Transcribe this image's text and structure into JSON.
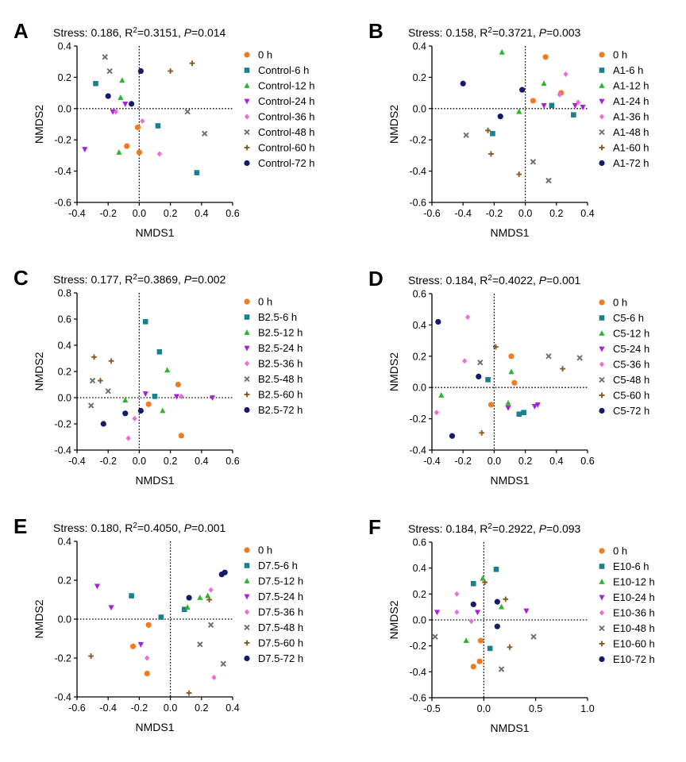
{
  "series_styles": [
    {
      "color": "#f47a20",
      "marker": "circle"
    },
    {
      "color": "#1a7f8e",
      "marker": "square"
    },
    {
      "color": "#2db52d",
      "marker": "triangle-up"
    },
    {
      "color": "#a523d6",
      "marker": "triangle-down"
    },
    {
      "color": "#f06ad8",
      "marker": "diamond"
    },
    {
      "color": "#6d6d6d",
      "marker": "x"
    },
    {
      "color": "#8a5a24",
      "marker": "plus"
    },
    {
      "color": "#151a6b",
      "marker": "circle"
    }
  ],
  "chart_data": [
    {
      "panel": "A",
      "type": "scatter",
      "stress": "0.186",
      "r2": "0.3151",
      "p": "0.014",
      "xlabel": "NMDS1",
      "ylabel": "NMDS2",
      "xlim": [
        -0.4,
        0.6
      ],
      "ylim": [
        -0.6,
        0.4
      ],
      "xticks": [
        -0.4,
        -0.2,
        0.0,
        0.2,
        0.4,
        0.6
      ],
      "yticks": [
        -0.6,
        -0.4,
        -0.2,
        0.0,
        0.2,
        0.4
      ],
      "series": [
        {
          "name": "0 h",
          "points": [
            [
              -0.01,
              -0.12
            ],
            [
              -0.08,
              -0.24
            ],
            [
              0.0,
              -0.28
            ]
          ]
        },
        {
          "name": "Control-6 h",
          "points": [
            [
              -0.28,
              0.16
            ],
            [
              0.12,
              -0.11
            ],
            [
              0.37,
              -0.41
            ]
          ]
        },
        {
          "name": "Control-12 h",
          "points": [
            [
              -0.11,
              0.18
            ],
            [
              -0.12,
              0.07
            ],
            [
              -0.13,
              -0.28
            ]
          ]
        },
        {
          "name": "Control-24 h",
          "points": [
            [
              -0.35,
              -0.26
            ],
            [
              -0.09,
              0.03
            ],
            [
              -0.17,
              -0.02
            ]
          ]
        },
        {
          "name": "Control-36 h",
          "points": [
            [
              -0.15,
              -0.02
            ],
            [
              0.02,
              -0.08
            ],
            [
              0.13,
              -0.29
            ]
          ]
        },
        {
          "name": "Control-48 h",
          "points": [
            [
              -0.22,
              0.33
            ],
            [
              -0.19,
              0.24
            ],
            [
              0.31,
              -0.02
            ],
            [
              0.42,
              -0.16
            ]
          ]
        },
        {
          "name": "Control-60 h",
          "points": [
            [
              0.2,
              0.24
            ],
            [
              0.34,
              0.29
            ]
          ]
        },
        {
          "name": "Control-72 h",
          "points": [
            [
              -0.2,
              0.08
            ],
            [
              -0.05,
              0.03
            ],
            [
              0.01,
              0.24
            ]
          ]
        }
      ]
    },
    {
      "panel": "B",
      "type": "scatter",
      "stress": "0.158",
      "r2": "0.3721",
      "p": "0.003",
      "xlabel": "NMDS1",
      "ylabel": "NMDS2",
      "xlim": [
        -0.6,
        0.4
      ],
      "ylim": [
        -0.6,
        0.4
      ],
      "xticks": [
        -0.6,
        -0.4,
        -0.2,
        0.0,
        0.2,
        0.4
      ],
      "yticks": [
        -0.6,
        -0.4,
        -0.2,
        0.0,
        0.2,
        0.4
      ],
      "series": [
        {
          "name": "0 h",
          "points": [
            [
              0.13,
              0.33
            ],
            [
              0.23,
              0.1
            ],
            [
              0.05,
              0.05
            ]
          ]
        },
        {
          "name": "A1-6 h",
          "points": [
            [
              0.17,
              0.02
            ],
            [
              0.31,
              -0.04
            ],
            [
              -0.21,
              -0.16
            ]
          ]
        },
        {
          "name": "A1-12 h",
          "points": [
            [
              -0.15,
              0.36
            ],
            [
              0.12,
              0.16
            ],
            [
              -0.04,
              -0.02
            ]
          ]
        },
        {
          "name": "A1-24 h",
          "points": [
            [
              0.12,
              0.02
            ],
            [
              0.32,
              0.02
            ],
            [
              0.37,
              0.01
            ]
          ]
        },
        {
          "name": "A1-36 h",
          "points": [
            [
              0.26,
              0.22
            ],
            [
              0.22,
              0.09
            ],
            [
              0.34,
              0.04
            ]
          ]
        },
        {
          "name": "A1-48 h",
          "points": [
            [
              -0.38,
              -0.17
            ],
            [
              0.05,
              -0.34
            ],
            [
              0.15,
              -0.46
            ]
          ]
        },
        {
          "name": "A1-60 h",
          "points": [
            [
              -0.24,
              -0.14
            ],
            [
              -0.22,
              -0.29
            ],
            [
              -0.04,
              -0.42
            ]
          ]
        },
        {
          "name": "A1-72 h",
          "points": [
            [
              -0.4,
              0.16
            ],
            [
              -0.16,
              -0.05
            ],
            [
              -0.02,
              0.12
            ]
          ]
        }
      ]
    },
    {
      "panel": "C",
      "type": "scatter",
      "stress": "0.177",
      "r2": "0.3869",
      "p": "0.002",
      "xlabel": "NMDS1",
      "ylabel": "NMDS2",
      "xlim": [
        -0.4,
        0.6
      ],
      "ylim": [
        -0.4,
        0.8
      ],
      "xticks": [
        -0.4,
        -0.2,
        0.0,
        0.2,
        0.4,
        0.6
      ],
      "yticks": [
        -0.4,
        -0.2,
        0.0,
        0.2,
        0.4,
        0.6,
        0.8
      ],
      "series": [
        {
          "name": "0 h",
          "points": [
            [
              0.25,
              0.1
            ],
            [
              0.06,
              -0.05
            ],
            [
              0.27,
              -0.29
            ]
          ]
        },
        {
          "name": "B2.5-6 h",
          "points": [
            [
              0.04,
              0.58
            ],
            [
              0.13,
              0.35
            ],
            [
              0.1,
              0.01
            ]
          ]
        },
        {
          "name": "B2.5-12 h",
          "points": [
            [
              -0.09,
              -0.02
            ],
            [
              0.18,
              0.21
            ],
            [
              0.15,
              -0.1
            ]
          ]
        },
        {
          "name": "B2.5-24 h",
          "points": [
            [
              0.04,
              0.03
            ],
            [
              0.24,
              0.01
            ],
            [
              0.47,
              0.0
            ]
          ]
        },
        {
          "name": "B2.5-36 h",
          "points": [
            [
              0.27,
              0.01
            ],
            [
              -0.07,
              -0.31
            ],
            [
              -0.03,
              -0.16
            ]
          ]
        },
        {
          "name": "B2.5-48 h",
          "points": [
            [
              -0.3,
              0.13
            ],
            [
              -0.2,
              0.05
            ],
            [
              -0.31,
              -0.06
            ]
          ]
        },
        {
          "name": "B2.5-60 h",
          "points": [
            [
              -0.29,
              0.31
            ],
            [
              -0.18,
              0.28
            ],
            [
              -0.25,
              0.13
            ]
          ]
        },
        {
          "name": "B2.5-72 h",
          "points": [
            [
              -0.23,
              -0.2
            ],
            [
              -0.09,
              -0.12
            ],
            [
              0.01,
              -0.1
            ]
          ]
        }
      ]
    },
    {
      "panel": "D",
      "type": "scatter",
      "stress": "0.184",
      "r2": "0.4022",
      "p": "0.001",
      "xlabel": "NMDS1",
      "ylabel": "NMDS2",
      "xlim": [
        -0.4,
        0.6
      ],
      "ylim": [
        -0.4,
        0.6
      ],
      "xticks": [
        -0.4,
        -0.2,
        0.0,
        0.2,
        0.4,
        0.6
      ],
      "yticks": [
        -0.4,
        -0.2,
        0.0,
        0.2,
        0.4,
        0.6
      ],
      "series": [
        {
          "name": "0 h",
          "points": [
            [
              0.11,
              0.2
            ],
            [
              0.13,
              0.03
            ],
            [
              -0.02,
              -0.11
            ]
          ]
        },
        {
          "name": "C5-6 h",
          "points": [
            [
              -0.04,
              0.05
            ],
            [
              0.16,
              -0.17
            ],
            [
              0.19,
              -0.16
            ]
          ]
        },
        {
          "name": "C5-12 h",
          "points": [
            [
              -0.34,
              -0.05
            ],
            [
              0.11,
              0.1
            ],
            [
              0.09,
              -0.1
            ]
          ]
        },
        {
          "name": "C5-24 h",
          "points": [
            [
              0.09,
              -0.13
            ],
            [
              0.26,
              -0.12
            ],
            [
              0.28,
              -0.11
            ]
          ]
        },
        {
          "name": "C5-36 h",
          "points": [
            [
              -0.17,
              0.45
            ],
            [
              -0.19,
              0.17
            ],
            [
              -0.37,
              -0.16
            ]
          ]
        },
        {
          "name": "C5-48 h",
          "points": [
            [
              -0.09,
              0.16
            ],
            [
              0.35,
              0.2
            ],
            [
              0.55,
              0.19
            ]
          ]
        },
        {
          "name": "C5-60 h",
          "points": [
            [
              0.01,
              0.26
            ],
            [
              0.44,
              0.12
            ],
            [
              -0.08,
              -0.29
            ]
          ]
        },
        {
          "name": "C5-72 h",
          "points": [
            [
              -0.36,
              0.42
            ],
            [
              -0.1,
              0.07
            ],
            [
              -0.27,
              -0.31
            ]
          ]
        }
      ]
    },
    {
      "panel": "E",
      "type": "scatter",
      "stress": "0.180",
      "r2": "0.4050",
      "p": "0.001",
      "xlabel": "NMDS1",
      "ylabel": "NMDS2",
      "xlim": [
        -0.6,
        0.4
      ],
      "ylim": [
        -0.4,
        0.4
      ],
      "xticks": [
        -0.6,
        -0.4,
        -0.2,
        0.0,
        0.2,
        0.4
      ],
      "yticks": [
        -0.4,
        -0.2,
        0.0,
        0.2,
        0.4
      ],
      "series": [
        {
          "name": "0 h",
          "points": [
            [
              -0.14,
              -0.03
            ],
            [
              -0.24,
              -0.14
            ],
            [
              -0.15,
              -0.28
            ]
          ]
        },
        {
          "name": "D7.5-6 h",
          "points": [
            [
              -0.25,
              0.12
            ],
            [
              -0.06,
              0.01
            ],
            [
              0.09,
              0.05
            ]
          ]
        },
        {
          "name": "D7.5-12 h",
          "points": [
            [
              0.11,
              0.06
            ],
            [
              0.19,
              0.11
            ],
            [
              0.24,
              0.12
            ]
          ]
        },
        {
          "name": "D7.5-24 h",
          "points": [
            [
              -0.47,
              0.17
            ],
            [
              -0.38,
              0.06
            ],
            [
              -0.19,
              -0.13
            ]
          ]
        },
        {
          "name": "D7.5-36 h",
          "points": [
            [
              0.26,
              0.15
            ],
            [
              -0.15,
              -0.2
            ],
            [
              0.28,
              -0.3
            ]
          ]
        },
        {
          "name": "D7.5-48 h",
          "points": [
            [
              0.26,
              -0.03
            ],
            [
              0.19,
              -0.13
            ],
            [
              0.34,
              -0.23
            ]
          ]
        },
        {
          "name": "D7.5-60 h",
          "points": [
            [
              0.25,
              0.1
            ],
            [
              -0.51,
              -0.19
            ],
            [
              0.12,
              -0.38
            ]
          ]
        },
        {
          "name": "D7.5-72 h",
          "points": [
            [
              0.33,
              0.23
            ],
            [
              0.35,
              0.24
            ],
            [
              0.12,
              0.11
            ]
          ]
        }
      ]
    },
    {
      "panel": "F",
      "type": "scatter",
      "stress": "0.184",
      "r2": "0.2922",
      "p": "0.093",
      "xlabel": "NMDS1",
      "ylabel": "NMDS2",
      "xlim": [
        -0.5,
        1.0
      ],
      "ylim": [
        -0.6,
        0.6
      ],
      "xticks": [
        -0.5,
        0.0,
        0.5,
        1.0
      ],
      "yticks": [
        -0.6,
        -0.4,
        -0.2,
        0.0,
        0.2,
        0.4,
        0.6
      ],
      "series": [
        {
          "name": "0 h",
          "points": [
            [
              -0.03,
              -0.16
            ],
            [
              -0.1,
              -0.36
            ],
            [
              -0.04,
              -0.32
            ]
          ]
        },
        {
          "name": "E10-6 h",
          "points": [
            [
              0.12,
              0.39
            ],
            [
              -0.1,
              0.28
            ],
            [
              0.06,
              -0.22
            ]
          ]
        },
        {
          "name": "E10-12 h",
          "points": [
            [
              -0.01,
              0.32
            ],
            [
              0.17,
              0.1
            ],
            [
              -0.17,
              -0.16
            ]
          ]
        },
        {
          "name": "E10-24 h",
          "points": [
            [
              -0.45,
              0.06
            ],
            [
              -0.06,
              0.06
            ],
            [
              0.41,
              0.07
            ]
          ]
        },
        {
          "name": "E10-36 h",
          "points": [
            [
              -0.26,
              0.2
            ],
            [
              -0.26,
              0.06
            ],
            [
              -0.12,
              -0.01
            ]
          ]
        },
        {
          "name": "E10-48 h",
          "points": [
            [
              -0.47,
              -0.13
            ],
            [
              0.17,
              -0.38
            ],
            [
              0.48,
              -0.13
            ]
          ]
        },
        {
          "name": "E10-60 h",
          "points": [
            [
              0.01,
              0.29
            ],
            [
              0.21,
              0.16
            ],
            [
              0.25,
              -0.21
            ]
          ]
        },
        {
          "name": "E10-72 h",
          "points": [
            [
              -0.1,
              0.12
            ],
            [
              0.13,
              0.14
            ],
            [
              0.13,
              -0.05
            ]
          ]
        }
      ]
    }
  ]
}
